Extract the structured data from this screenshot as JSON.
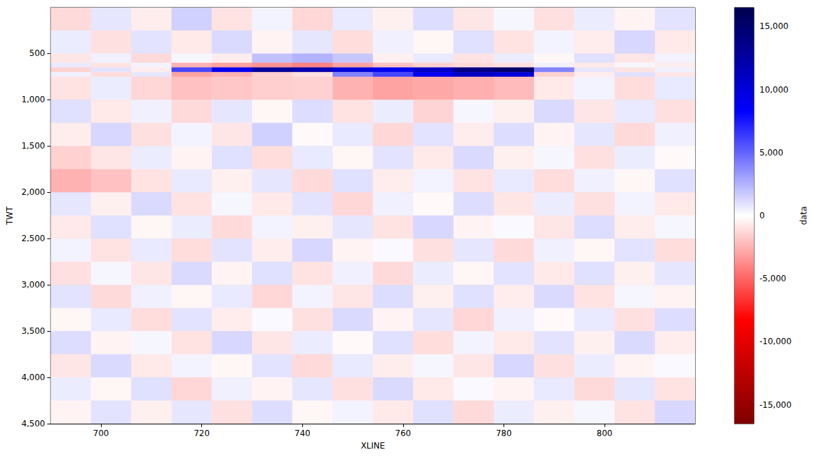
{
  "chart_data": {
    "type": "heatmap",
    "xlabel": "XLINE",
    "ylabel": "TWT",
    "xlim": [
      690,
      818
    ],
    "ylim": [
      4500,
      4
    ],
    "xticks": [
      700,
      720,
      740,
      760,
      780,
      800
    ],
    "yticks": [
      500,
      1000,
      1500,
      2000,
      2500,
      3000,
      3500,
      4000,
      4500
    ],
    "grid": true,
    "x_edges": [
      690,
      698,
      706,
      714,
      722,
      730,
      738,
      746,
      754,
      762,
      770,
      778,
      786,
      794,
      802,
      810,
      818
    ],
    "y_edges": [
      4,
      250,
      500,
      600,
      650,
      700,
      750,
      1000,
      1250,
      1500,
      1750,
      2000,
      2250,
      2500,
      2750,
      3000,
      3250,
      3500,
      3750,
      4000,
      4250,
      4500
    ],
    "cells": [
      [
        -1200,
        800,
        -600,
        1500,
        -900,
        400,
        -1300,
        700,
        -500,
        1100,
        -800,
        300,
        -1000,
        600,
        -400,
        900
      ],
      [
        600,
        -1000,
        900,
        -700,
        1200,
        -400,
        800,
        -1100,
        500,
        -300,
        1000,
        -900,
        400,
        -600,
        1300,
        -700
      ],
      [
        -800,
        500,
        -1200,
        300,
        -600,
        2000,
        2500,
        1800,
        -500,
        700,
        -900,
        600,
        -300,
        1000,
        -800,
        400
      ],
      [
        700,
        -900,
        400,
        -2500,
        -3000,
        -3500,
        -4000,
        -3000,
        -2000,
        -1500,
        -1200,
        -1000,
        500,
        -700,
        300,
        -600
      ],
      [
        -1500,
        900,
        -600,
        6000,
        9000,
        13000,
        12000,
        10000,
        9000,
        11000,
        14000,
        15000,
        4000,
        800,
        -900,
        500
      ],
      [
        500,
        -1100,
        800,
        -3000,
        -2500,
        -1500,
        -1000,
        4000,
        6000,
        9000,
        11000,
        10000,
        -1500,
        -600,
        1000,
        -800
      ],
      [
        -900,
        600,
        -1300,
        -2000,
        -1800,
        -1600,
        -1500,
        -2500,
        -3000,
        -2800,
        -2600,
        -2200,
        -700,
        400,
        -1100,
        700
      ],
      [
        1000,
        -700,
        500,
        -1200,
        800,
        -300,
        1100,
        -900,
        600,
        -1400,
        300,
        -500,
        1200,
        -800,
        700,
        -1000
      ],
      [
        -600,
        1300,
        -1000,
        400,
        -800,
        1500,
        -200,
        700,
        -1300,
        900,
        -600,
        1100,
        -400,
        800,
        -1200,
        500
      ],
      [
        -1500,
        -800,
        600,
        -400,
        1000,
        -1100,
        700,
        -300,
        900,
        -700,
        1200,
        -500,
        300,
        -1000,
        600,
        -200
      ],
      [
        -2500,
        -2000,
        -900,
        700,
        -500,
        800,
        -1200,
        1000,
        -600,
        400,
        -900,
        700,
        -1100,
        500,
        -300,
        1000
      ],
      [
        800,
        -500,
        1200,
        -900,
        300,
        -700,
        900,
        -1300,
        500,
        -200,
        1100,
        -800,
        600,
        -1000,
        400,
        -700
      ],
      [
        -700,
        1000,
        -300,
        600,
        -1200,
        400,
        -500,
        800,
        -900,
        1300,
        -400,
        200,
        -800,
        1100,
        -600,
        300
      ],
      [
        400,
        -900,
        700,
        -1100,
        900,
        -600,
        1300,
        -400,
        200,
        -1000,
        800,
        -1200,
        500,
        -300,
        900,
        -1100
      ],
      [
        -1000,
        300,
        -800,
        1200,
        -400,
        1000,
        -900,
        500,
        -1200,
        600,
        -300,
        900,
        -700,
        1000,
        -500,
        800
      ],
      [
        900,
        -1200,
        500,
        -300,
        700,
        -1300,
        400,
        -800,
        1100,
        -500,
        1000,
        -600,
        1200,
        -900,
        300,
        -400
      ],
      [
        -300,
        700,
        -1100,
        900,
        -600,
        200,
        -1000,
        1200,
        -400,
        800,
        -1300,
        500,
        -200,
        700,
        -1000,
        1100
      ],
      [
        1100,
        -400,
        300,
        -900,
        1300,
        -800,
        600,
        -200,
        1000,
        -1100,
        400,
        -700,
        900,
        -500,
        1200,
        -600
      ],
      [
        -800,
        1200,
        -700,
        400,
        -300,
        900,
        -1200,
        700,
        -600,
        300,
        -800,
        1300,
        -1000,
        600,
        -400,
        200
      ],
      [
        600,
        -300,
        1000,
        -1300,
        500,
        -400,
        800,
        -1000,
        1200,
        -700,
        200,
        -400,
        700,
        -1200,
        800,
        -900
      ],
      [
        -400,
        900,
        -500,
        800,
        -1000,
        1100,
        -300,
        400,
        -700,
        1000,
        -1200,
        600,
        -500,
        300,
        -900,
        1300
      ]
    ],
    "colorbar": {
      "label": "data",
      "lim": [
        -16500,
        16500
      ],
      "ticks": [
        -15000,
        -10000,
        -5000,
        0,
        5000,
        10000,
        15000
      ]
    }
  }
}
